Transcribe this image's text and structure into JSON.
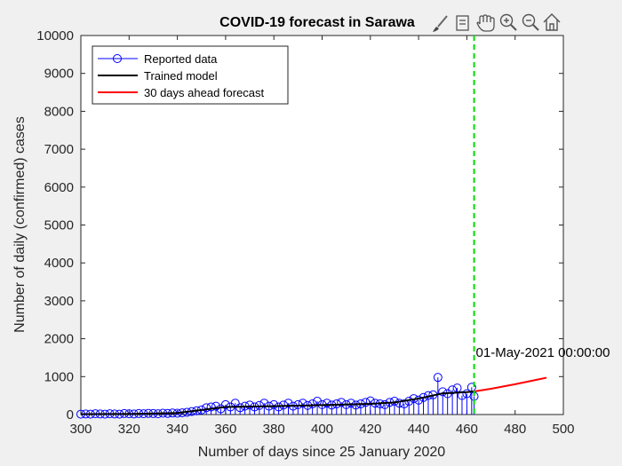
{
  "toolbar": {
    "icons": [
      "brush-icon",
      "data-tips-icon",
      "pan-hand-icon",
      "zoom-in-icon",
      "zoom-out-icon",
      "home-icon"
    ]
  },
  "chart_data": {
    "type": "line",
    "title": "COVID-19 forecast in Sarawa",
    "xlabel": "Number of days since 25 January 2020",
    "ylabel": "Number of daily (confirmed) cases",
    "xlim": [
      300,
      500
    ],
    "ylim": [
      0,
      10000
    ],
    "xticks": [
      300,
      320,
      340,
      360,
      380,
      400,
      420,
      440,
      460,
      480,
      500
    ],
    "yticks": [
      0,
      1000,
      2000,
      3000,
      4000,
      5000,
      6000,
      7000,
      8000,
      9000,
      10000
    ],
    "grid": false,
    "legend_position": "top-left",
    "colors": {
      "reported": "#0000ff",
      "trained": "#000000",
      "forecast": "#ff0000",
      "divider": "#00dd00"
    },
    "series": [
      {
        "name": "Reported data",
        "style": "stem-circle",
        "x": [
          300,
          302,
          304,
          306,
          308,
          310,
          312,
          314,
          316,
          318,
          320,
          322,
          324,
          326,
          328,
          330,
          332,
          334,
          336,
          338,
          340,
          342,
          344,
          346,
          348,
          350,
          352,
          354,
          356,
          358,
          360,
          362,
          364,
          366,
          368,
          370,
          372,
          374,
          376,
          378,
          380,
          382,
          384,
          386,
          388,
          390,
          392,
          394,
          396,
          398,
          400,
          402,
          404,
          406,
          408,
          410,
          412,
          414,
          416,
          418,
          420,
          422,
          424,
          426,
          428,
          430,
          432,
          434,
          436,
          438,
          440,
          442,
          444,
          446,
          448,
          450,
          452,
          454,
          456,
          458,
          460,
          462,
          463
        ],
        "y": [
          10,
          15,
          10,
          20,
          15,
          10,
          20,
          15,
          10,
          25,
          20,
          15,
          25,
          20,
          30,
          25,
          20,
          35,
          30,
          40,
          35,
          45,
          60,
          80,
          100,
          120,
          180,
          200,
          220,
          150,
          260,
          200,
          300,
          180,
          220,
          250,
          200,
          240,
          300,
          220,
          260,
          200,
          250,
          300,
          220,
          260,
          300,
          240,
          280,
          350,
          260,
          300,
          250,
          280,
          320,
          260,
          300,
          250,
          280,
          320,
          360,
          300,
          280,
          260,
          320,
          350,
          300,
          280,
          350,
          420,
          380,
          450,
          500,
          520,
          980,
          600,
          550,
          650,
          700,
          500,
          550,
          720,
          480
        ]
      },
      {
        "name": "Trained model",
        "style": "line",
        "x": [
          300,
          320,
          340,
          350,
          360,
          380,
          400,
          420,
          430,
          440,
          450,
          460,
          463
        ],
        "y": [
          10,
          15,
          40,
          120,
          200,
          220,
          250,
          280,
          320,
          420,
          560,
          590,
          610
        ]
      },
      {
        "name": "30 days ahead forecast",
        "style": "line",
        "x": [
          463,
          470,
          480,
          490,
          493
        ],
        "y": [
          610,
          680,
          800,
          930,
          970
        ]
      }
    ],
    "annotations": [
      {
        "text": "01-May-2021 00:00:00",
        "x": 463,
        "y": 1470
      }
    ],
    "vline_x": 463
  }
}
